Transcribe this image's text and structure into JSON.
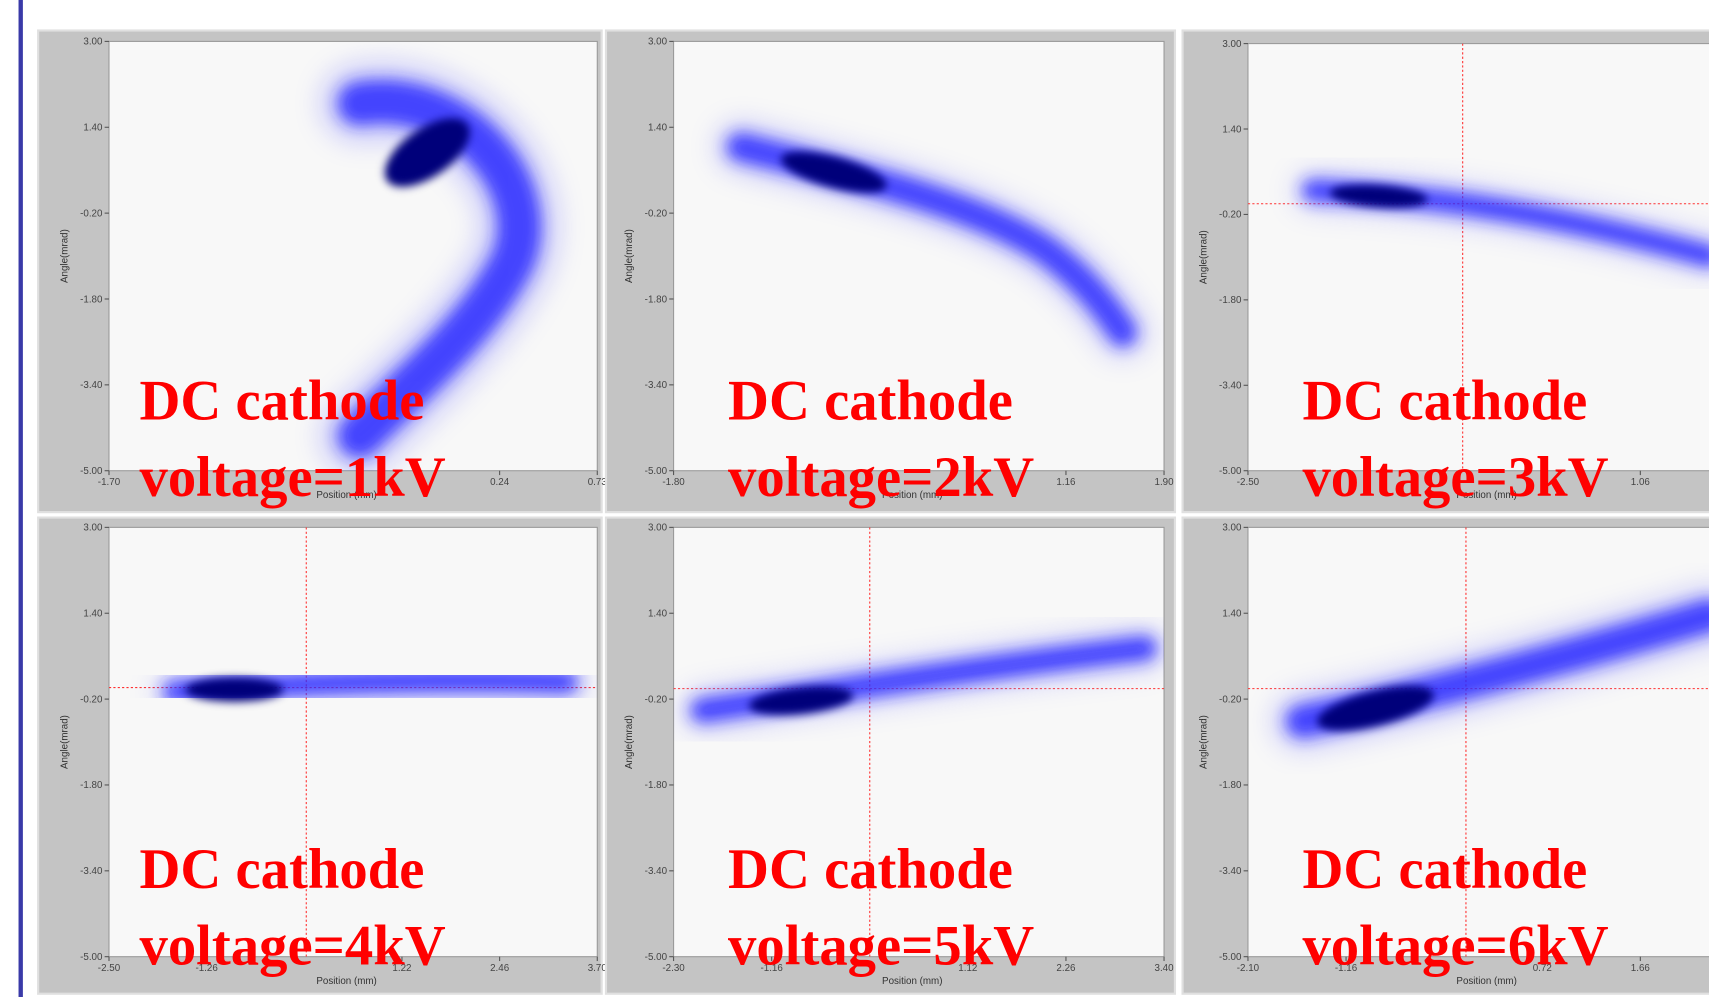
{
  "panels": [
    {
      "y_ticks": [
        "3.00",
        "1.40",
        "-0.20",
        "-1.80",
        "-3.40",
        "-5.00"
      ],
      "x_ticks": [
        "-1.70",
        "0.24",
        "0.73"
      ],
      "y_label": "Angle(mrad)",
      "x_label": "Position (mm)",
      "caption": [
        "DC cathode",
        "voltage=1kV"
      ]
    },
    {
      "y_ticks": [
        "3.00",
        "1.40",
        "-0.20",
        "-1.80",
        "-3.40",
        "-5.00"
      ],
      "x_ticks": [
        "-1.80",
        "1.16",
        "1.90"
      ],
      "y_label": "Angle(mrad)",
      "x_label": "Position (mm)",
      "caption": [
        "DC cathode",
        "voltage=2kV"
      ]
    },
    {
      "y_ticks": [
        "3.00",
        "1.40",
        "-0.20",
        "-1.80",
        "-3.40",
        "-5.00"
      ],
      "x_ticks": [
        "-2.50",
        "1.06"
      ],
      "y_label": "Angle(mrad)",
      "x_label": "Position (mm)",
      "caption": [
        "DC cathode",
        "voltage=3kV"
      ]
    },
    {
      "y_ticks": [
        "3.00",
        "1.40",
        "-0.20",
        "-1.80",
        "-3.40",
        "-5.00"
      ],
      "x_ticks": [
        "-2.50",
        "-1.26",
        "1.22",
        "2.46",
        "3.70"
      ],
      "y_label": "Angle(mrad)",
      "x_label": "Position (mm)",
      "caption": [
        "DC cathode",
        "voltage=4kV"
      ]
    },
    {
      "y_ticks": [
        "3.00",
        "1.40",
        "-0.20",
        "-1.80",
        "-3.40",
        "-5.00"
      ],
      "x_ticks": [
        "-2.30",
        "-1.16",
        "1.12",
        "2.26",
        "3.40"
      ],
      "y_label": "Angle(mrad)",
      "x_label": "Position (mm)",
      "caption": [
        "DC cathode",
        "voltage=5kV"
      ]
    },
    {
      "y_ticks": [
        "3.00",
        "1.40",
        "-0.20",
        "-1.80",
        "-3.40",
        "-5.00"
      ],
      "x_ticks": [
        "-2.10",
        "-1.16",
        "0.72",
        "1.66"
      ],
      "y_label": "Angle(mrad)",
      "x_label": "Position (mm)",
      "caption": [
        "DC cathode",
        "voltage=6kV"
      ]
    }
  ]
}
